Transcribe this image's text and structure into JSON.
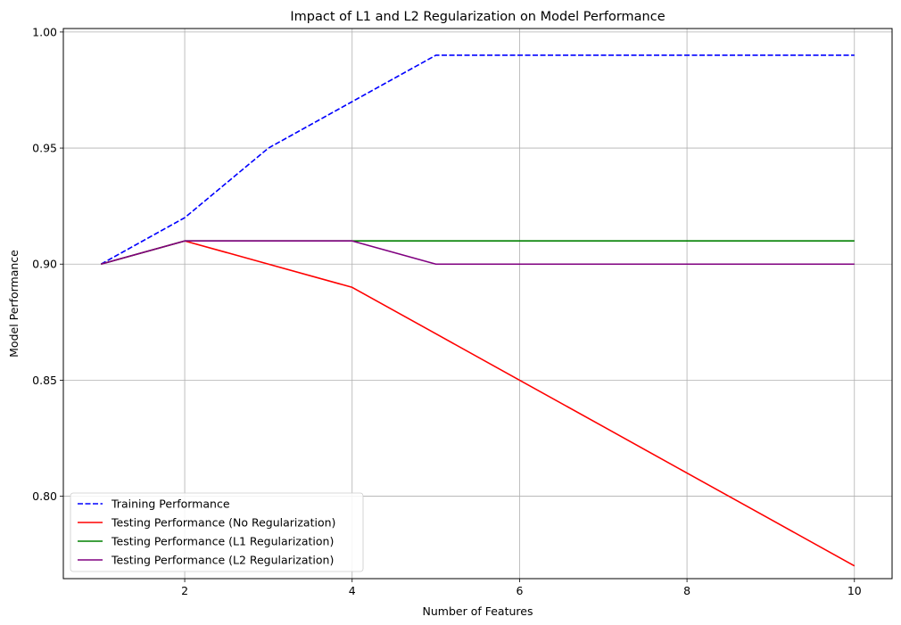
{
  "chart_data": {
    "type": "line",
    "title": "Impact of L1 and L2 Regularization on Model Performance",
    "xlabel": "Number of Features",
    "ylabel": "Model Performance",
    "xlim": [
      0.55,
      10.45
    ],
    "ylim": [
      0.7645,
      1.0015
    ],
    "xticks": [
      2,
      4,
      6,
      8,
      10
    ],
    "yticks": [
      0.8,
      0.85,
      0.9,
      0.95,
      1.0
    ],
    "ytick_labels": [
      "0.80",
      "0.85",
      "0.90",
      "0.95",
      "1.00"
    ],
    "grid": true,
    "legend_position": "lower-left",
    "x": [
      1,
      2,
      3,
      4,
      5,
      6,
      7,
      8,
      9,
      10
    ],
    "series": [
      {
        "name": "Training Performance",
        "color": "#0000ff",
        "dash": "dashed",
        "values": [
          0.9,
          0.92,
          0.95,
          0.97,
          0.99,
          0.99,
          0.99,
          0.99,
          0.99,
          0.99
        ]
      },
      {
        "name": "Testing Performance (No Regularization)",
        "color": "#ff0000",
        "dash": "solid",
        "values": [
          0.9,
          0.91,
          0.9,
          0.89,
          0.87,
          0.85,
          0.83,
          0.81,
          0.79,
          0.77
        ]
      },
      {
        "name": "Testing Performance (L1 Regularization)",
        "color": "#008000",
        "dash": "solid",
        "values": [
          0.9,
          0.91,
          0.91,
          0.91,
          0.91,
          0.91,
          0.91,
          0.91,
          0.91,
          0.91
        ]
      },
      {
        "name": "Testing Performance (L2 Regularization)",
        "color": "#800080",
        "dash": "solid",
        "values": [
          0.9,
          0.91,
          0.91,
          0.91,
          0.9,
          0.9,
          0.9,
          0.9,
          0.9,
          0.9
        ]
      }
    ]
  }
}
